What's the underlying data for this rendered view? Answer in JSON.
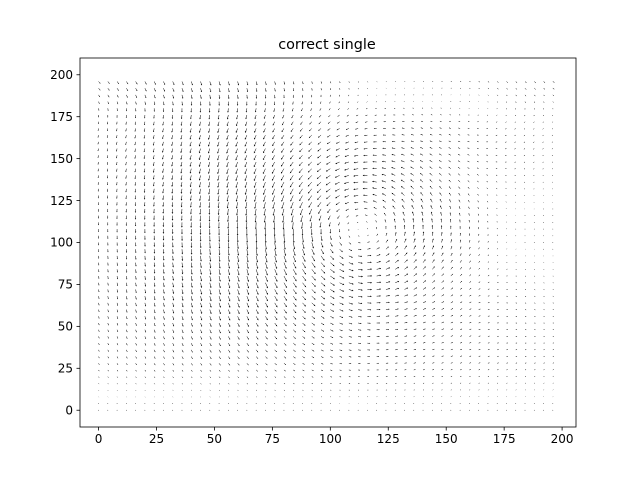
{
  "chart_data": {
    "type": "quiver",
    "title": "correct single",
    "xlabel": "",
    "ylabel": "",
    "xlim": [
      -8,
      206
    ],
    "ylim": [
      -10,
      210
    ],
    "x_ticks": [
      0,
      25,
      50,
      75,
      100,
      125,
      150,
      175,
      200
    ],
    "y_ticks": [
      0,
      25,
      50,
      75,
      100,
      125,
      150,
      175,
      200
    ],
    "x_tick_labels": [
      "0",
      "25",
      "50",
      "75",
      "100",
      "125",
      "150",
      "175",
      "200"
    ],
    "y_tick_labels": [
      "0",
      "25",
      "50",
      "75",
      "100",
      "125",
      "150",
      "175",
      "200"
    ],
    "grid": false,
    "legend": "none",
    "arrow_color": "#000000",
    "field": {
      "x_range": [
        0,
        196
      ],
      "y_range": [
        0,
        196
      ],
      "step": 4,
      "vortex_center": [
        110,
        108
      ],
      "vortex_radius": 25,
      "vortex_strength": 1.0,
      "vortex_rotation": "counterclockwise",
      "background_flow": "downward",
      "arrow_length_max": 7
    }
  }
}
